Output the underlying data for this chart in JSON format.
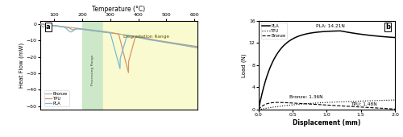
{
  "dsc": {
    "xlim": [
      50,
      610
    ],
    "ylim": [
      -52,
      2
    ],
    "title": "Temperature (°C)",
    "ylabel": "Heat Flow (mW)",
    "xticks": [
      100,
      200,
      300,
      400,
      500,
      600
    ],
    "yticks": [
      0,
      -10,
      -20,
      -30,
      -40,
      -50
    ],
    "processing_range": [
      200,
      275
    ],
    "degradation_range": [
      275,
      610
    ],
    "processing_color": "#cde8c8",
    "degradation_color": "#fafad0",
    "label": "a",
    "pla_color": "#7ab8d4",
    "tpu_color": "#d4956a",
    "bronze_color": "#b0b098"
  },
  "mech": {
    "xlim": [
      0,
      2.0
    ],
    "ylim": [
      0,
      16
    ],
    "xlabel": "Displacement (mm)",
    "ylabel": "Load (N)",
    "xticks": [
      0,
      0.5,
      1.0,
      1.5,
      2.0
    ],
    "yticks": [
      0,
      4,
      8,
      12,
      16
    ],
    "pla_max": 14.21,
    "tpu_max": 1.48,
    "bronze_max": 1.36,
    "label": "b"
  }
}
